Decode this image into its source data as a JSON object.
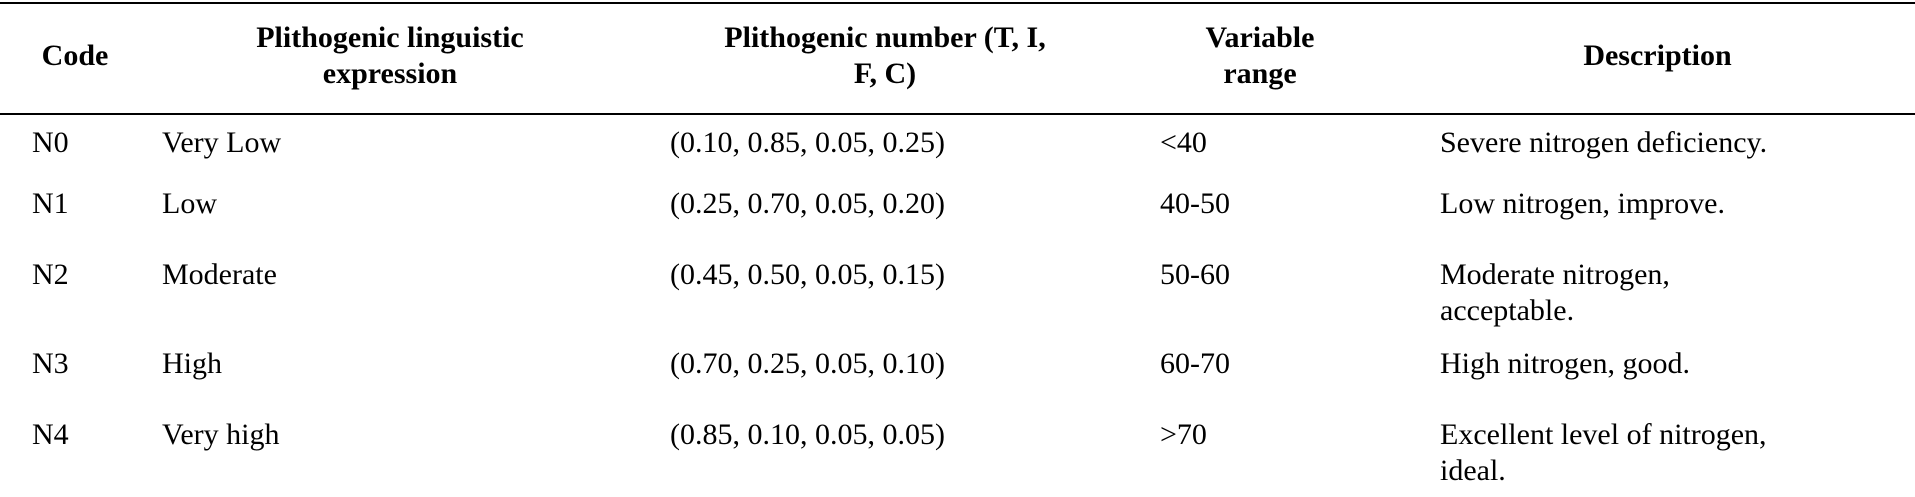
{
  "table": {
    "headers": {
      "code": "Code",
      "expression": "Plithogenic linguistic\nexpression",
      "number": "Plithogenic number (T, I,\nF, C)",
      "range": "Variable\nrange",
      "description": "Description"
    },
    "rows": [
      {
        "code": "N0",
        "expression": "Very Low",
        "number": "(0.10, 0.85, 0.05, 0.25)",
        "range": "<40",
        "description": "Severe nitrogen deficiency."
      },
      {
        "code": "N1",
        "expression": "Low",
        "number": "(0.25, 0.70, 0.05, 0.20)",
        "range": "40-50",
        "description": "Low nitrogen, improve."
      },
      {
        "code": "N2",
        "expression": "Moderate",
        "number": "(0.45, 0.50, 0.05, 0.15)",
        "range": "50-60",
        "description": "Moderate nitrogen,\nacceptable."
      },
      {
        "code": "N3",
        "expression": "High",
        "number": "(0.70, 0.25, 0.05, 0.10)",
        "range": "60-70",
        "description": "High nitrogen, good."
      },
      {
        "code": "N4",
        "expression": "Very high",
        "number": "(0.85, 0.10, 0.05, 0.05)",
        "range": ">70",
        "description": "Excellent level of nitrogen,\nideal."
      }
    ]
  }
}
